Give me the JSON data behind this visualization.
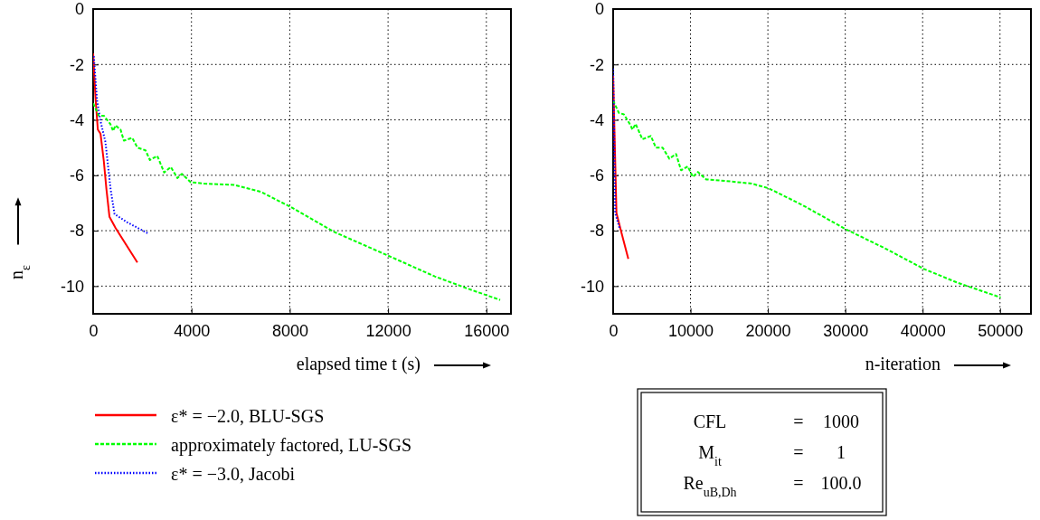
{
  "chart_data": [
    {
      "type": "line",
      "xlabel": "elapsed time t (s)",
      "ylabel": "n$_{ε}$",
      "xlim": [
        0,
        17000
      ],
      "ylim": [
        -11,
        0
      ],
      "xticks": [
        0,
        4000,
        8000,
        12000,
        16000
      ],
      "yticks": [
        -10,
        -8,
        -6,
        -4,
        -2,
        0
      ],
      "grid": true,
      "legend": "bottom",
      "series": [
        {
          "name": "ε* = −2.0, BLU-SGS",
          "color": "#ff0000",
          "line_style": "solid",
          "x": [
            0,
            95,
            190,
            300,
            435,
            540,
            665,
            910,
            1800
          ],
          "values": [
            -1.6,
            -3.2,
            -4.35,
            -4.5,
            -5.5,
            -6.5,
            -7.5,
            -7.9,
            -9.15
          ]
        },
        {
          "name": "approximately factored, LU-SGS",
          "color": "#00ff00",
          "line_style": "dashed",
          "x": [
            0,
            230,
            435,
            700,
            810,
            910,
            1115,
            1250,
            1590,
            1800,
            2130,
            2310,
            2610,
            2890,
            3160,
            3430,
            3610,
            3970,
            4520,
            5740,
            6830,
            8050,
            9820,
            12000,
            13900,
            15270,
            16560
          ],
          "values": [
            -3.4,
            -3.85,
            -3.85,
            -4.15,
            -4.4,
            -4.2,
            -4.35,
            -4.75,
            -4.65,
            -5.0,
            -5.1,
            -5.45,
            -5.3,
            -5.9,
            -5.7,
            -6.1,
            -5.95,
            -6.25,
            -6.3,
            -6.35,
            -6.6,
            -7.15,
            -8.05,
            -8.9,
            -9.65,
            -10.1,
            -10.5
          ]
        },
        {
          "name": "ε* = −3.0, Jacobi",
          "color": "#0000ff",
          "line_style": "dotted",
          "x": [
            25,
            160,
            300,
            500,
            710,
            870,
            1390,
            2240
          ],
          "values": [
            -1.7,
            -3.3,
            -4.05,
            -4.8,
            -6.5,
            -7.4,
            -7.7,
            -8.1
          ]
        }
      ]
    },
    {
      "type": "line",
      "xlabel": "n-iteration",
      "xlim": [
        0,
        54000
      ],
      "ylim": [
        -11,
        0
      ],
      "xticks": [
        0,
        10000,
        20000,
        30000,
        40000,
        50000
      ],
      "yticks": [
        -10,
        -8,
        -6,
        -4,
        -2,
        0
      ],
      "grid": true,
      "series": [
        {
          "color": "#ff0000",
          "line_style": "solid",
          "x": [
            0,
            170,
            430,
            960,
            1960
          ],
          "values": [
            -2.4,
            -4.4,
            -7.36,
            -7.95,
            -9.02
          ]
        },
        {
          "color": "#00ff00",
          "line_style": "dashed",
          "x": [
            0,
            740,
            1390,
            2260,
            2480,
            2910,
            3780,
            4870,
            5520,
            6390,
            7260,
            8130,
            8780,
            9650,
            10300,
            10960,
            12040,
            14430,
            17910,
            20090,
            24430,
            30090,
            35300,
            40090,
            44430,
            50090
          ],
          "values": [
            -3.3,
            -3.75,
            -3.8,
            -4.2,
            -4.35,
            -4.15,
            -4.7,
            -4.58,
            -5.0,
            -5.0,
            -5.4,
            -5.23,
            -5.82,
            -5.68,
            -6.06,
            -5.88,
            -6.15,
            -6.2,
            -6.3,
            -6.47,
            -7.07,
            -7.95,
            -8.66,
            -9.37,
            -9.87,
            -10.41
          ]
        },
        {
          "color": "#0000ff",
          "line_style": "dotted",
          "x": [
            0,
            130,
            260,
            870
          ],
          "values": [
            -2.15,
            -4.4,
            -7.36,
            -7.95
          ]
        }
      ]
    },
    {
      "type": "other",
      "annotations": [
        "CFL",
        "=",
        "1000",
        "M$_{it}$",
        "=",
        "1",
        "Re$_{uB,Dh}$",
        "=",
        "100.0"
      ]
    }
  ]
}
